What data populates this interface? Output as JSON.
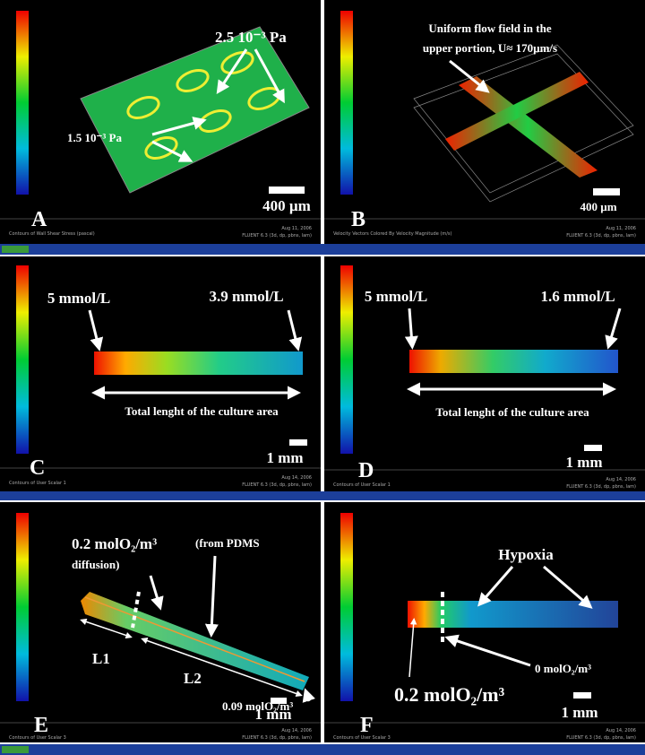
{
  "panels": [
    {
      "letter": "A",
      "annotations": [
        "2.5 10⁻³ Pa",
        "1.5 10⁻³ Pa"
      ],
      "scale_bar": "400 µm",
      "footer_left": "Contours of Wall Shear Stress (pascal)",
      "footer_date": "Aug 11, 2006",
      "footer_solver": "FLUENT 6.3 (3d, dp, pbns, lam)"
    },
    {
      "letter": "B",
      "annotations": [
        "Uniform flow field in the",
        "upper portion, U≈ 170µm/s"
      ],
      "scale_bar": "400 µm",
      "footer_left": "Velocity Vectors Colored By Velocity Magnitude (m/s)",
      "footer_date": "Aug 11, 2006",
      "footer_solver": "FLUENT 6.3 (3d, dp, pbns, lam)"
    },
    {
      "letter": "C",
      "annotations": [
        "5 mmol/L",
        "3.9 mmol/L",
        "Total lenght of the culture area"
      ],
      "scale_bar": "1 mm",
      "footer_left": "Contours of User Scalar 1",
      "footer_date": "Aug 14, 2006",
      "footer_solver": "FLUENT 6.3 (3d, dp, pbns, lam)"
    },
    {
      "letter": "D",
      "annotations": [
        "5 mmol/L",
        "1.6 mmol/L",
        "Total lenght of the culture area"
      ],
      "scale_bar": "1 mm",
      "footer_left": "Contours of User Scalar 1",
      "footer_date": "Aug 14, 2006",
      "footer_solver": "FLUENT 6.3 (3d, dp, pbns, lam)"
    },
    {
      "letter": "E",
      "annotations": [
        "0.2 molO₂/m³",
        "(from PDMS",
        "diffusion)",
        "L1",
        "L2",
        "0.09 molO₂/m³"
      ],
      "scale_bar": "1 mm",
      "footer_left": "Contours of User Scalar 3",
      "footer_date": "Aug 14, 2006",
      "footer_solver": "FLUENT 6.3 (3d, dp, pbns, lam)"
    },
    {
      "letter": "F",
      "annotations": [
        "Hypoxia",
        "0.2 molO₂/m³",
        "0 molO₂/m³"
      ],
      "scale_bar": "1 mm",
      "footer_left": "Contours of User Scalar 3",
      "footer_date": "Aug 14, 2006",
      "footer_solver": "FLUENT 6.3 (3d, dp, pbns, lam)"
    }
  ]
}
